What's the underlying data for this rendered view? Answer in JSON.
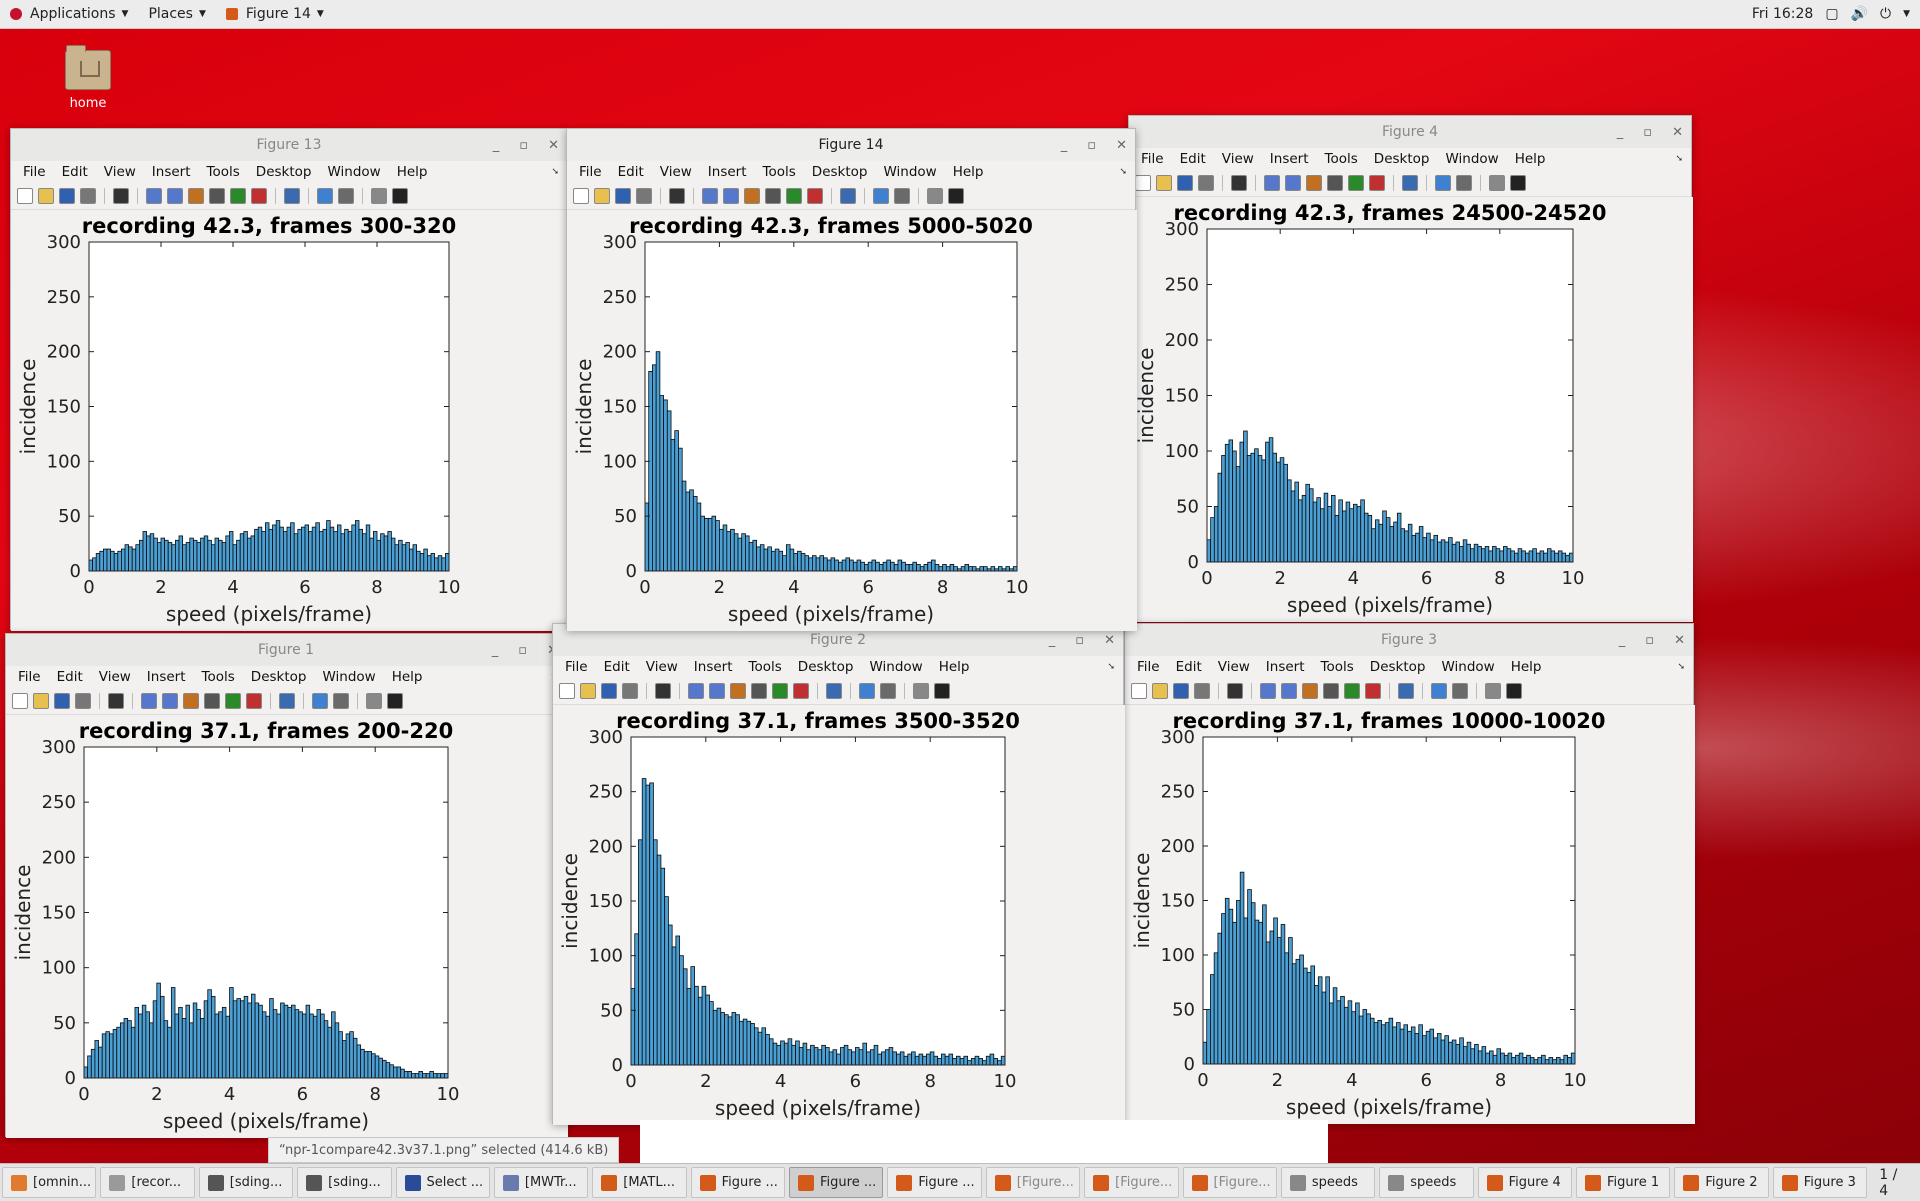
{
  "topbar": {
    "applications": "Applications",
    "places": "Places",
    "current_window": "Figure 14",
    "clock": "Fri 16:28"
  },
  "desktop": {
    "home_label": "home"
  },
  "menus": [
    "File",
    "Edit",
    "View",
    "Insert",
    "Tools",
    "Desktop",
    "Window",
    "Help"
  ],
  "windows": {
    "fig13": {
      "title": "Figure 13"
    },
    "fig14": {
      "title": "Figure 14"
    },
    "fig4": {
      "title": "Figure 4"
    },
    "fig1": {
      "title": "Figure 1"
    },
    "fig2": {
      "title": "Figure 2"
    },
    "fig3": {
      "title": "Figure 3"
    }
  },
  "chart_data": [
    {
      "id": "fig13",
      "type": "bar",
      "title": "recording 42.3, frames 300-320",
      "xlabel": "speed (pixels/frame)",
      "ylabel": "incidence",
      "xlim": [
        0,
        10
      ],
      "ylim": [
        0,
        300
      ],
      "xticks": [
        0,
        2,
        4,
        6,
        8,
        10
      ],
      "yticks": [
        0,
        50,
        100,
        150,
        200,
        250,
        300
      ],
      "bin_width": 0.1,
      "values": [
        10,
        12,
        16,
        18,
        20,
        20,
        18,
        16,
        18,
        20,
        24,
        22,
        20,
        24,
        28,
        36,
        32,
        34,
        30,
        26,
        30,
        28,
        26,
        24,
        28,
        32,
        24,
        26,
        30,
        28,
        26,
        30,
        32,
        28,
        24,
        30,
        28,
        26,
        32,
        36,
        24,
        28,
        34,
        36,
        30,
        32,
        38,
        40,
        36,
        44,
        38,
        42,
        46,
        40,
        36,
        40,
        44,
        34,
        38,
        40,
        42,
        36,
        40,
        44,
        36,
        38,
        46,
        40,
        36,
        42,
        34,
        38,
        36,
        42,
        46,
        38,
        34,
        42,
        30,
        36,
        28,
        34,
        32,
        36,
        30,
        24,
        28,
        24,
        26,
        20,
        24,
        18,
        16,
        20,
        14,
        16,
        12,
        14,
        12,
        16
      ]
    },
    {
      "id": "fig14",
      "type": "bar",
      "title": "recording 42.3, frames 5000-5020",
      "xlabel": "speed (pixels/frame)",
      "ylabel": "incidence",
      "xlim": [
        0,
        10
      ],
      "ylim": [
        0,
        300
      ],
      "xticks": [
        0,
        2,
        4,
        6,
        8,
        10
      ],
      "yticks": [
        0,
        50,
        100,
        150,
        200,
        250,
        300
      ],
      "bin_width": 0.1,
      "values": [
        62,
        182,
        188,
        200,
        160,
        156,
        146,
        120,
        128,
        112,
        82,
        72,
        74,
        68,
        62,
        50,
        48,
        48,
        50,
        46,
        38,
        42,
        36,
        38,
        34,
        30,
        34,
        32,
        26,
        28,
        22,
        24,
        20,
        22,
        18,
        20,
        18,
        14,
        24,
        20,
        16,
        18,
        16,
        14,
        12,
        14,
        12,
        14,
        12,
        10,
        12,
        10,
        8,
        10,
        12,
        10,
        8,
        10,
        8,
        6,
        8,
        10,
        8,
        6,
        8,
        10,
        8,
        6,
        10,
        8,
        6,
        6,
        8,
        6,
        4,
        6,
        8,
        10,
        6,
        4,
        6,
        4,
        6,
        4,
        2,
        4,
        6,
        4,
        4,
        2,
        4,
        4,
        2,
        4,
        2,
        4,
        2,
        4,
        2,
        4
      ]
    },
    {
      "id": "fig4",
      "type": "bar",
      "title": "recording 42.3, frames 24500-24520",
      "xlabel": "speed (pixels/frame)",
      "ylabel": "incidence",
      "xlim": [
        0,
        10
      ],
      "ylim": [
        0,
        300
      ],
      "xticks": [
        0,
        2,
        4,
        6,
        8,
        10
      ],
      "yticks": [
        0,
        50,
        100,
        150,
        200,
        250,
        300
      ],
      "bin_width": 0.1,
      "values": [
        20,
        40,
        50,
        80,
        96,
        106,
        110,
        100,
        86,
        108,
        118,
        96,
        98,
        102,
        96,
        92,
        108,
        112,
        98,
        90,
        94,
        88,
        74,
        64,
        72,
        56,
        60,
        70,
        66,
        54,
        58,
        48,
        62,
        50,
        60,
        42,
        56,
        46,
        54,
        48,
        52,
        50,
        56,
        44,
        42,
        30,
        38,
        34,
        46,
        40,
        32,
        36,
        44,
        30,
        28,
        34,
        24,
        26,
        32,
        22,
        26,
        20,
        24,
        18,
        20,
        18,
        22,
        16,
        18,
        14,
        20,
        16,
        12,
        16,
        14,
        12,
        14,
        10,
        14,
        12,
        10,
        14,
        12,
        10,
        8,
        12,
        10,
        8,
        10,
        12,
        8,
        10,
        8,
        12,
        10,
        8,
        10,
        8,
        6,
        8
      ]
    },
    {
      "id": "fig1",
      "type": "bar",
      "title": "recording 37.1, frames 200-220",
      "xlabel": "speed (pixels/frame)",
      "ylabel": "incidence",
      "xlim": [
        0,
        10
      ],
      "ylim": [
        0,
        300
      ],
      "xticks": [
        0,
        2,
        4,
        6,
        8,
        10
      ],
      "yticks": [
        0,
        50,
        100,
        150,
        200,
        250,
        300
      ],
      "bin_width": 0.1,
      "values": [
        10,
        20,
        26,
        34,
        28,
        40,
        42,
        40,
        44,
        46,
        50,
        54,
        52,
        46,
        64,
        58,
        66,
        60,
        50,
        70,
        86,
        74,
        52,
        46,
        82,
        58,
        64,
        54,
        66,
        50,
        68,
        62,
        54,
        70,
        80,
        74,
        58,
        60,
        64,
        56,
        82,
        70,
        72,
        70,
        74,
        68,
        76,
        68,
        66,
        60,
        56,
        72,
        62,
        58,
        68,
        66,
        64,
        66,
        62,
        60,
        58,
        66,
        58,
        56,
        62,
        58,
        52,
        46,
        60,
        50,
        42,
        34,
        40,
        42,
        36,
        30,
        26,
        24,
        24,
        22,
        20,
        18,
        16,
        14,
        12,
        10,
        10,
        8,
        6,
        6,
        4,
        4,
        6,
        4,
        4,
        6,
        4,
        4,
        4,
        4
      ]
    },
    {
      "id": "fig2",
      "type": "bar",
      "title": "recording 37.1, frames 3500-3520",
      "xlabel": "speed (pixels/frame)",
      "ylabel": "incidence",
      "xlim": [
        0,
        10
      ],
      "ylim": [
        0,
        300
      ],
      "xticks": [
        0,
        2,
        4,
        6,
        8,
        10
      ],
      "yticks": [
        0,
        50,
        100,
        150,
        200,
        250,
        300
      ],
      "bin_width": 0.1,
      "values": [
        70,
        120,
        206,
        262,
        256,
        258,
        206,
        192,
        180,
        154,
        128,
        108,
        118,
        100,
        88,
        70,
        90,
        72,
        62,
        72,
        64,
        58,
        50,
        52,
        48,
        46,
        44,
        48,
        46,
        40,
        42,
        40,
        38,
        34,
        30,
        34,
        28,
        24,
        20,
        18,
        22,
        20,
        24,
        18,
        22,
        16,
        20,
        14,
        18,
        16,
        14,
        18,
        16,
        12,
        14,
        10,
        16,
        18,
        14,
        12,
        16,
        14,
        20,
        12,
        14,
        18,
        10,
        12,
        14,
        16,
        12,
        10,
        12,
        8,
        10,
        12,
        8,
        10,
        8,
        10,
        12,
        8,
        6,
        10,
        8,
        10,
        6,
        8,
        6,
        8,
        4,
        6,
        8,
        6,
        4,
        8,
        10,
        6,
        4,
        8
      ]
    },
    {
      "id": "fig3",
      "type": "bar",
      "title": "recording 37.1, frames 10000-10020",
      "xlabel": "speed (pixels/frame)",
      "ylabel": "incidence",
      "xlim": [
        0,
        10
      ],
      "ylim": [
        0,
        300
      ],
      "xticks": [
        0,
        2,
        4,
        6,
        8,
        10
      ],
      "yticks": [
        0,
        50,
        100,
        150,
        200,
        250,
        300
      ],
      "bin_width": 0.1,
      "values": [
        20,
        50,
        82,
        102,
        120,
        138,
        152,
        142,
        130,
        150,
        176,
        134,
        160,
        148,
        132,
        130,
        146,
        112,
        122,
        134,
        116,
        128,
        102,
        116,
        92,
        96,
        100,
        88,
        84,
        90,
        72,
        80,
        66,
        80,
        56,
        70,
        58,
        62,
        52,
        58,
        48,
        56,
        44,
        50,
        46,
        42,
        38,
        40,
        36,
        38,
        42,
        34,
        38,
        32,
        36,
        30,
        34,
        28,
        36,
        26,
        30,
        32,
        24,
        28,
        22,
        26,
        20,
        22,
        18,
        24,
        16,
        20,
        14,
        18,
        12,
        16,
        10,
        12,
        8,
        14,
        10,
        8,
        10,
        6,
        8,
        10,
        6,
        8,
        6,
        4,
        6,
        8,
        4,
        6,
        4,
        6,
        4,
        8,
        6,
        10
      ]
    }
  ],
  "status_message": "“npr-1compare42.3v37.1.png” selected (414.6 kB)",
  "taskbar": {
    "items": [
      {
        "label": "[omnin...",
        "color": "#e07a2e",
        "active": false,
        "dim": false
      },
      {
        "label": "[recor...",
        "color": "#9a9a9a",
        "active": false,
        "dim": false
      },
      {
        "label": "[sding...",
        "color": "#555555",
        "active": false,
        "dim": false
      },
      {
        "label": "[sding...",
        "color": "#555555",
        "active": false,
        "dim": false
      },
      {
        "label": "Select ...",
        "color": "#2a4a9a",
        "active": false,
        "dim": false
      },
      {
        "label": "[MWTr...",
        "color": "#6a7aaa",
        "active": false,
        "dim": false
      },
      {
        "label": "[MATL...",
        "color": "#d45a1a",
        "active": false,
        "dim": false
      },
      {
        "label": "Figure ...",
        "color": "#d45a1a",
        "active": false,
        "dim": false
      },
      {
        "label": "Figure ...",
        "color": "#d45a1a",
        "active": true,
        "dim": false
      },
      {
        "label": "Figure ...",
        "color": "#d45a1a",
        "active": false,
        "dim": false
      },
      {
        "label": "[Figure...",
        "color": "#d45a1a",
        "active": false,
        "dim": true
      },
      {
        "label": "[Figure...",
        "color": "#d45a1a",
        "active": false,
        "dim": true
      },
      {
        "label": "[Figure...",
        "color": "#d45a1a",
        "active": false,
        "dim": true
      },
      {
        "label": "speeds",
        "color": "#888888",
        "active": false,
        "dim": false
      },
      {
        "label": "speeds",
        "color": "#888888",
        "active": false,
        "dim": false
      },
      {
        "label": "Figure 4",
        "color": "#d45a1a",
        "active": false,
        "dim": false
      },
      {
        "label": "Figure 1",
        "color": "#d45a1a",
        "active": false,
        "dim": false
      },
      {
        "label": "Figure 2",
        "color": "#d45a1a",
        "active": false,
        "dim": false
      },
      {
        "label": "Figure 3",
        "color": "#d45a1a",
        "active": false,
        "dim": false
      }
    ],
    "pager": "1 / 4"
  },
  "colors": {
    "bar_fill": "#4a9fd5",
    "bar_edge": "#0a0a0a",
    "accent": "#c8102e"
  }
}
